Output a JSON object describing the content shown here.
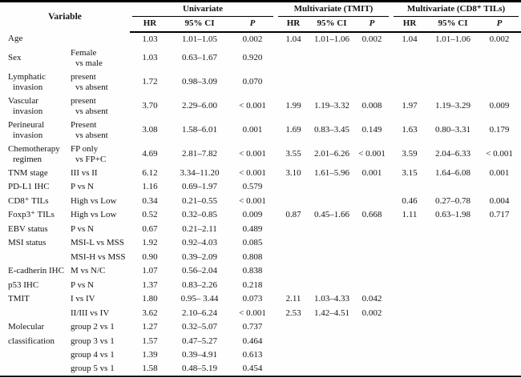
{
  "table": {
    "variable_header": "Variable",
    "groups": [
      {
        "label": "Univariate"
      },
      {
        "label": "Multivariate (TMIT)"
      },
      {
        "label": "Multivariate (CD8⁺ TILs)"
      }
    ],
    "sub_headers": [
      "HR",
      "95% CI",
      "P"
    ],
    "rows": [
      {
        "variable": [
          "Age"
        ],
        "comparison": [],
        "values": [
          "1.03",
          "1.01–1.05",
          "0.002",
          "1.04",
          "1.01–1.06",
          "0.002",
          "1.04",
          "1.01–1.06",
          "0.002"
        ],
        "tall": false
      },
      {
        "variable": [
          "Sex"
        ],
        "comparison": [
          "Female",
          "vs male"
        ],
        "values": [
          "1.03",
          "0.63–1.67",
          "0.920",
          "",
          "",
          "",
          "",
          "",
          ""
        ],
        "tall": true
      },
      {
        "variable": [
          "Lymphatic",
          "invasion"
        ],
        "comparison": [
          "present",
          "vs absent"
        ],
        "values": [
          "1.72",
          "0.98–3.09",
          "0.070",
          "",
          "",
          "",
          "",
          "",
          ""
        ],
        "tall": true
      },
      {
        "variable": [
          "Vascular",
          "invasion"
        ],
        "comparison": [
          "present",
          "vs absent"
        ],
        "values": [
          "3.70",
          "2.29–6.00",
          "< 0.001",
          "1.99",
          "1.19–3.32",
          "0.008",
          "1.97",
          "1.19–3.29",
          "0.009"
        ],
        "tall": true
      },
      {
        "variable": [
          "Perineural",
          "invasion"
        ],
        "comparison": [
          "Present",
          "vs absent"
        ],
        "values": [
          "3.08",
          "1.58–6.01",
          "0.001",
          "1.69",
          "0.83–3.45",
          "0.149",
          "1.63",
          "0.80–3.31",
          "0.179"
        ],
        "tall": true
      },
      {
        "variable": [
          "Chemotherapy",
          "regimen"
        ],
        "comparison": [
          "FP only",
          "vs FP+C"
        ],
        "values": [
          "4.69",
          "2.81–7.82",
          "< 0.001",
          "3.55",
          "2.01–6.26",
          "< 0.001",
          "3.59",
          "2.04–6.33",
          "< 0.001"
        ],
        "tall": true
      },
      {
        "variable": [
          "TNM stage"
        ],
        "comparison": [
          "III vs II"
        ],
        "values": [
          "6.12",
          "3.34–11.20",
          "< 0.001",
          "3.10",
          "1.61–5.96",
          "0.001",
          "3.15",
          "1.64–6.08",
          "0.001"
        ],
        "tall": false
      },
      {
        "variable": [
          "PD-L1 IHC"
        ],
        "comparison": [
          "P vs N"
        ],
        "values": [
          "1.16",
          "0.69–1.97",
          "0.579",
          "",
          "",
          "",
          "",
          "",
          ""
        ],
        "tall": false
      },
      {
        "variable": [
          "CD8⁺ TILs"
        ],
        "comparison": [
          "High vs Low"
        ],
        "values": [
          "0.34",
          "0.21–0.55",
          "< 0.001",
          "",
          "",
          "",
          "0.46",
          "0.27–0.78",
          "0.004"
        ],
        "tall": false
      },
      {
        "variable": [
          "Foxp3⁺ TILs"
        ],
        "comparison": [
          "High vs Low"
        ],
        "values": [
          "0.52",
          "0.32–0.85",
          "0.009",
          "0.87",
          "0.45–1.66",
          "0.668",
          "1.11",
          "0.63–1.98",
          "0.717"
        ],
        "tall": false
      },
      {
        "variable": [
          "EBV status"
        ],
        "comparison": [
          "P vs N"
        ],
        "values": [
          "0.67",
          "0.21–2.11",
          "0.489",
          "",
          "",
          "",
          "",
          "",
          ""
        ],
        "tall": false
      },
      {
        "variable": [
          "MSI status"
        ],
        "comparison": [
          "MSI-L vs MSS"
        ],
        "values": [
          "1.92",
          "0.92–4.03",
          "0.085",
          "",
          "",
          "",
          "",
          "",
          ""
        ],
        "tall": false
      },
      {
        "variable": [],
        "comparison": [
          "MSI-H vs MSS"
        ],
        "values": [
          "0.90",
          "0.39–2.09",
          "0.808",
          "",
          "",
          "",
          "",
          "",
          ""
        ],
        "tall": false
      },
      {
        "variable": [
          "E-cadherin IHC"
        ],
        "comparison": [
          "M vs N/C"
        ],
        "values": [
          "1.07",
          "0.56–2.04",
          "0.838",
          "",
          "",
          "",
          "",
          "",
          ""
        ],
        "tall": false
      },
      {
        "variable": [
          "p53 IHC"
        ],
        "comparison": [
          "P vs N"
        ],
        "values": [
          "1.37",
          "0.83–2.26",
          "0.218",
          "",
          "",
          "",
          "",
          "",
          ""
        ],
        "tall": false
      },
      {
        "variable": [
          "TMIT"
        ],
        "comparison": [
          "I vs IV"
        ],
        "values": [
          "1.80",
          "0.95– 3.44",
          "0.073",
          "2.11",
          "1.03–4.33",
          "0.042",
          "",
          "",
          ""
        ],
        "tall": false
      },
      {
        "variable": [],
        "comparison": [
          "II/III vs IV"
        ],
        "values": [
          "3.62",
          "2.10–6.24",
          "< 0.001",
          "2.53",
          "1.42–4.51",
          "0.002",
          "",
          "",
          ""
        ],
        "tall": false
      },
      {
        "variable": [
          "Molecular"
        ],
        "comparison": [
          "group 2 vs 1"
        ],
        "values": [
          "1.27",
          "0.32–5.07",
          "0.737",
          "",
          "",
          "",
          "",
          "",
          ""
        ],
        "tall": false
      },
      {
        "variable": [
          "classification"
        ],
        "comparison": [
          "group 3 vs 1"
        ],
        "values": [
          "1.57",
          "0.47–5.27",
          "0.464",
          "",
          "",
          "",
          "",
          "",
          ""
        ],
        "tall": false
      },
      {
        "variable": [],
        "comparison": [
          "group 4 vs 1"
        ],
        "values": [
          "1.39",
          "0.39–4.91",
          "0.613",
          "",
          "",
          "",
          "",
          "",
          ""
        ],
        "tall": false
      },
      {
        "variable": [],
        "comparison": [
          "group 5 vs 1"
        ],
        "values": [
          "1.58",
          "0.48–5.19",
          "0.454",
          "",
          "",
          "",
          "",
          "",
          ""
        ],
        "tall": false
      }
    ]
  }
}
